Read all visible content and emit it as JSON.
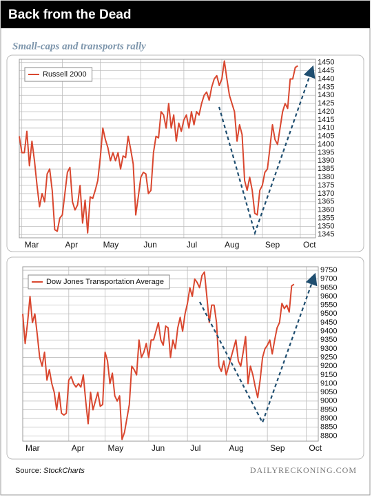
{
  "title": "Back from the Dead",
  "subtitle": "Small-caps and transports rally",
  "source_label": "Source:",
  "source": "StockCharts",
  "credit": "DAILYRECKONING.COM",
  "chart_data": [
    {
      "type": "line",
      "series": [
        {
          "name": "Russell 2000",
          "color": "#d9472f",
          "values": [
            1405,
            1395,
            1395,
            1408,
            1387,
            1402,
            1390,
            1375,
            1362,
            1370,
            1365,
            1382,
            1385,
            1372,
            1348,
            1347,
            1355,
            1357,
            1370,
            1383,
            1386,
            1365,
            1360,
            1363,
            1375,
            1352,
            1366,
            1346,
            1368,
            1367,
            1372,
            1378,
            1392,
            1410,
            1403,
            1398,
            1390,
            1395,
            1390,
            1395,
            1385,
            1393,
            1392,
            1405,
            1397,
            1388,
            1357,
            1368,
            1380,
            1383,
            1382,
            1370,
            1372,
            1395,
            1405,
            1404,
            1420,
            1418,
            1410,
            1425,
            1410,
            1418,
            1402,
            1413,
            1408,
            1415,
            1418,
            1410,
            1420,
            1412,
            1420,
            1418,
            1425,
            1430,
            1432,
            1427,
            1435,
            1440,
            1442,
            1436,
            1440,
            1451,
            1440,
            1430,
            1425,
            1420,
            1402,
            1412,
            1406,
            1378,
            1372,
            1380,
            1372,
            1358,
            1357,
            1372,
            1375,
            1383,
            1385,
            1398,
            1412,
            1403,
            1400,
            1410,
            1420,
            1425,
            1422,
            1440,
            1440,
            1447,
            1448
          ]
        }
      ],
      "xlim": [
        0,
        117
      ],
      "xticks": [
        {
          "value": 1,
          "label": "Mar"
        },
        {
          "value": 17,
          "label": "Apr"
        },
        {
          "value": 32,
          "label": "May"
        },
        {
          "value": 48,
          "label": "Jun"
        },
        {
          "value": 65,
          "label": "Jul"
        },
        {
          "value": 80,
          "label": "Aug"
        },
        {
          "value": 96,
          "label": "Sep"
        },
        {
          "value": 111,
          "label": "Oct"
        }
      ],
      "ylim": [
        1343,
        1452
      ],
      "yticks": [
        1345,
        1350,
        1355,
        1360,
        1365,
        1370,
        1375,
        1380,
        1385,
        1390,
        1395,
        1400,
        1405,
        1410,
        1415,
        1420,
        1425,
        1430,
        1435,
        1440,
        1445,
        1450
      ],
      "grid": true,
      "legend": "top-left"
    },
    {
      "type": "line",
      "series": [
        {
          "name": "Dow Jones Transportation Average",
          "color": "#d9472f",
          "values": [
            9500,
            9330,
            9450,
            9600,
            9450,
            9500,
            9380,
            9250,
            9200,
            9280,
            9120,
            9180,
            9100,
            9050,
            8950,
            9050,
            8930,
            8920,
            8930,
            9120,
            9140,
            9100,
            9080,
            9100,
            9080,
            9150,
            9000,
            8870,
            9050,
            8950,
            9000,
            9050,
            8970,
            8980,
            9280,
            9230,
            9100,
            9160,
            9030,
            9000,
            9030,
            8780,
            8820,
            8900,
            8980,
            9200,
            9180,
            9150,
            9350,
            9250,
            9280,
            9330,
            9250,
            9350,
            9350,
            9400,
            9450,
            9350,
            9320,
            9430,
            9420,
            9250,
            9350,
            9300,
            9420,
            9480,
            9400,
            9500,
            9560,
            9650,
            9600,
            9700,
            9680,
            9650,
            9720,
            9740,
            9600,
            9450,
            9550,
            9550,
            9450,
            9200,
            9170,
            9230,
            9150,
            9200,
            9250,
            9300,
            9350,
            9230,
            9200,
            9280,
            9370,
            9100,
            9200,
            9150,
            9080,
            9020,
            9120,
            9250,
            9300,
            9320,
            9350,
            9270,
            9350,
            9420,
            9450,
            9560,
            9530,
            9550,
            9510,
            9660,
            9670
          ]
        }
      ],
      "xlim": [
        0,
        122
      ],
      "xticks": [
        {
          "value": 0,
          "label": "Mar"
        },
        {
          "value": 19,
          "label": "Apr"
        },
        {
          "value": 34,
          "label": "May"
        },
        {
          "value": 52,
          "label": "Jun"
        },
        {
          "value": 68,
          "label": "Jul"
        },
        {
          "value": 84,
          "label": "Aug"
        },
        {
          "value": 101,
          "label": "Sep"
        },
        {
          "value": 117,
          "label": "Oct"
        }
      ],
      "ylim": [
        8770,
        9770
      ],
      "yticks": [
        8800,
        8850,
        8900,
        8950,
        9000,
        9050,
        9100,
        9150,
        9200,
        9250,
        9300,
        9350,
        9400,
        9450,
        9500,
        9550,
        9600,
        9650,
        9700,
        9750
      ],
      "grid": true,
      "legend": "top-left"
    }
  ]
}
